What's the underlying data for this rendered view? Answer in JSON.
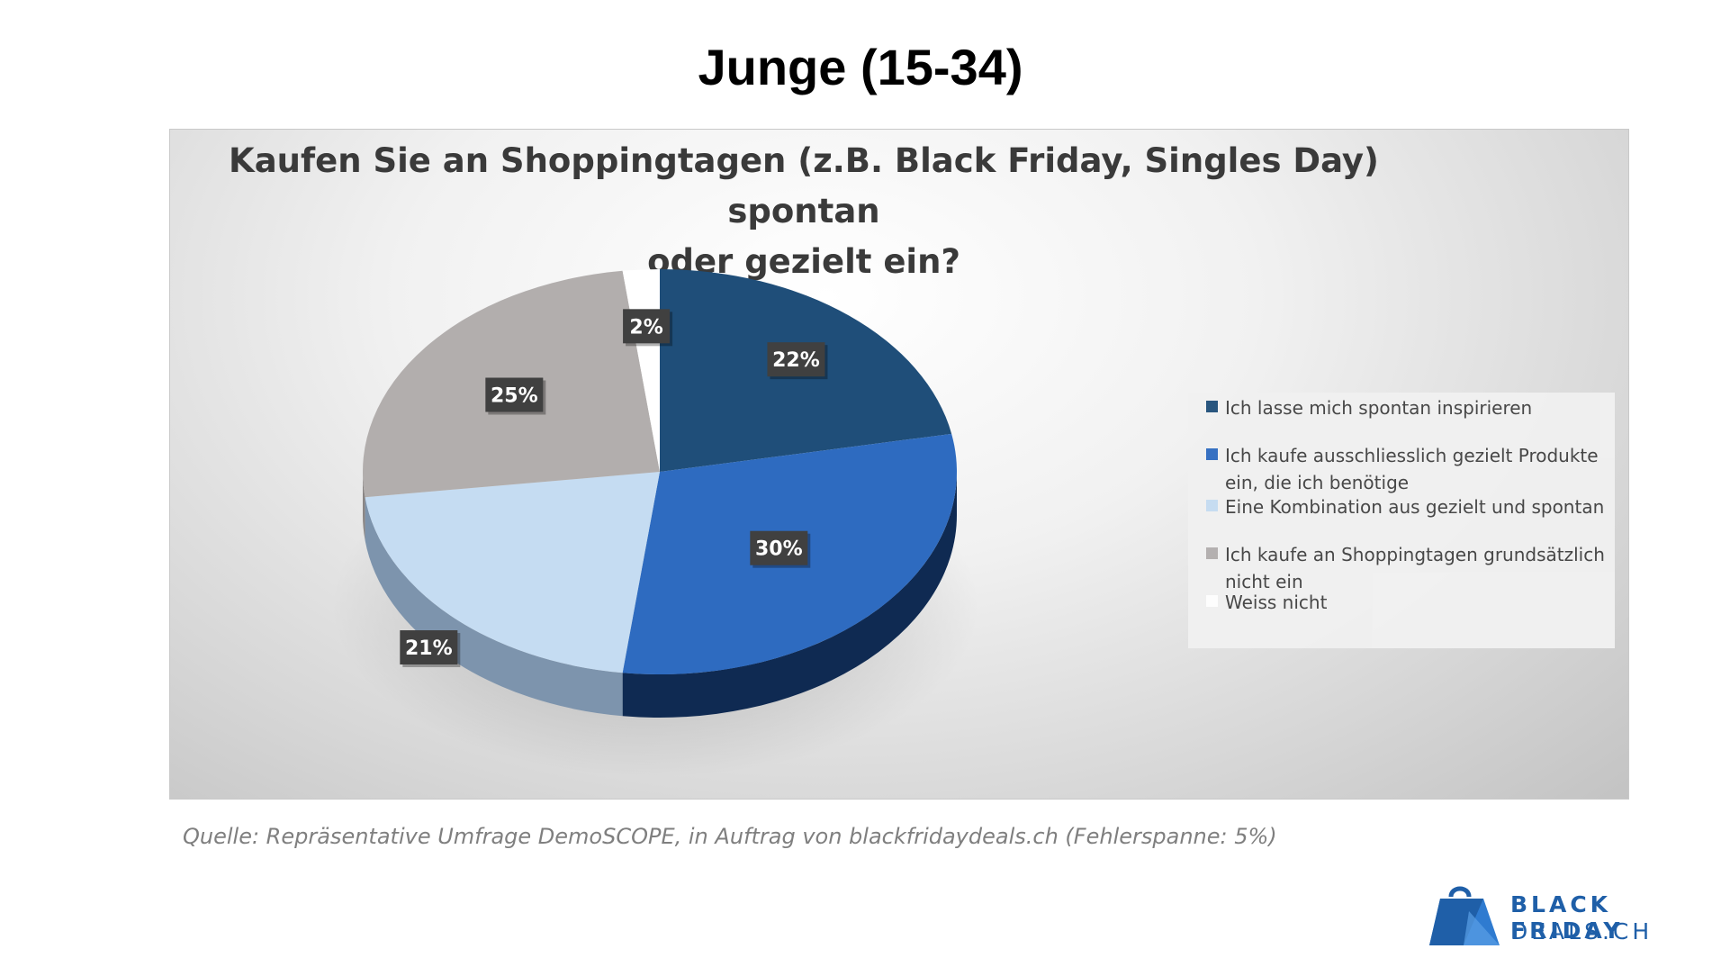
{
  "page": {
    "title": "Junge (15-34)",
    "source": "Quelle: Repräsentative Umfrage DemoSCOPE, in Auftrag von blackfridaydeals.ch (Fehlerspanne: 5%)"
  },
  "brand": {
    "line1": "BLACK FRIDAY",
    "line2": "DEALS.CH",
    "color": "#1f5fa8"
  },
  "chart_data": {
    "type": "pie",
    "title_line1": "Kaufen Sie an Shoppingtagen (z.B. Black Friday, Singles Day) spontan",
    "title_line2": "oder gezielt ein?",
    "legend_position": "right",
    "slices": [
      {
        "label": "Ich lasse mich spontan inspirieren",
        "value": 22,
        "value_label": "22%",
        "color": "#1f4e79",
        "side": "#12304d"
      },
      {
        "label": "Ich kaufe ausschliesslich gezielt Produkte ein, die ich benötige",
        "value": 30,
        "value_label": "30%",
        "color": "#2e6bc0",
        "side": "#0f2a52"
      },
      {
        "label": "Eine Kombination aus gezielt und spontan",
        "value": 21,
        "value_label": "21%",
        "color": "#c5dcf2",
        "side": "#7d94ad"
      },
      {
        "label": "Ich kaufe an Shoppingtagen grundsätzlich nicht ein",
        "value": 25,
        "value_label": "25%",
        "color": "#b2aead",
        "side": "#8a8685"
      },
      {
        "label": "Weiss nicht",
        "value": 2,
        "value_label": "2%",
        "color": "#ffffff",
        "side": "#dddddd"
      }
    ]
  }
}
